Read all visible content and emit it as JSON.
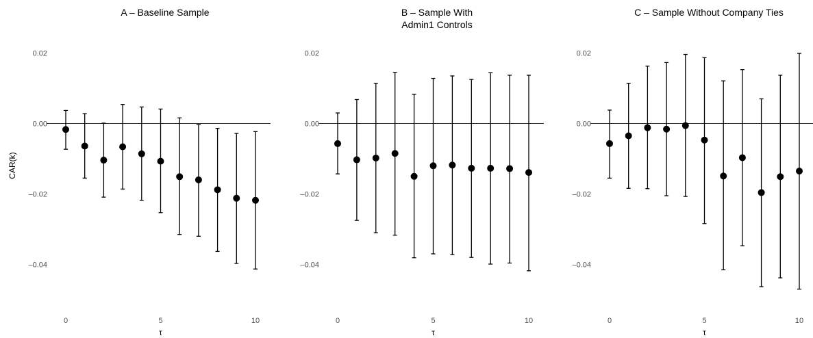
{
  "chart_data": [
    {
      "type": "scatter",
      "title": "A – Baseline Sample",
      "xlabel": "τ",
      "ylabel": "CAR(k)",
      "x": [
        0,
        1,
        2,
        3,
        4,
        5,
        6,
        7,
        8,
        9,
        10
      ],
      "y": [
        -0.0017,
        -0.0064,
        -0.0104,
        -0.0066,
        -0.0086,
        -0.0107,
        -0.0151,
        -0.016,
        -0.0188,
        -0.0212,
        -0.0218
      ],
      "ci_low": [
        -0.0073,
        -0.0155,
        -0.0209,
        -0.0186,
        -0.0218,
        -0.0253,
        -0.0315,
        -0.032,
        -0.0363,
        -0.0397,
        -0.0413
      ],
      "ci_high": [
        0.0037,
        0.0028,
        0.0001,
        0.0054,
        0.0047,
        0.0041,
        0.0016,
        -0.0003,
        -0.0014,
        -0.0028,
        -0.0023
      ],
      "xticks": [
        0,
        5,
        10
      ],
      "xtick_labels": [
        "0",
        "5",
        "10"
      ],
      "yticks": [
        0.02,
        0.0,
        -0.02,
        -0.04
      ],
      "ytick_labels": [
        "0.02",
        "0.00",
        "–0.02",
        "–0.04"
      ],
      "xlim": [
        -0.5,
        10.5
      ],
      "ylim": [
        -0.05,
        0.022
      ],
      "hline": 0
    },
    {
      "type": "scatter",
      "title": "B – Sample With\nAdmin1 Controls",
      "xlabel": "τ",
      "ylabel": "",
      "x": [
        0,
        1,
        2,
        3,
        4,
        5,
        6,
        7,
        8,
        9,
        10
      ],
      "y": [
        -0.0057,
        -0.0103,
        -0.0098,
        -0.0085,
        -0.015,
        -0.012,
        -0.0118,
        -0.0127,
        -0.0127,
        -0.0128,
        -0.0139
      ],
      "ci_low": [
        -0.0143,
        -0.0275,
        -0.031,
        -0.0317,
        -0.0381,
        -0.037,
        -0.0372,
        -0.038,
        -0.0399,
        -0.0396,
        -0.0418
      ],
      "ci_high": [
        0.003,
        0.0068,
        0.0114,
        0.0145,
        0.0083,
        0.0128,
        0.0135,
        0.0125,
        0.0144,
        0.0137,
        0.0137
      ],
      "xticks": [
        0,
        5,
        10
      ],
      "xtick_labels": [
        "0",
        "5",
        "10"
      ],
      "yticks": [
        0.02,
        0.0,
        -0.02,
        -0.04
      ],
      "ytick_labels": [
        "0.02",
        "0.00",
        "–0.02",
        "–0.04"
      ],
      "xlim": [
        -0.5,
        10.5
      ],
      "ylim": [
        -0.05,
        0.022
      ],
      "hline": 0
    },
    {
      "type": "scatter",
      "title": "C – Sample Without Company Ties",
      "xlabel": "τ",
      "ylabel": "",
      "x": [
        0,
        1,
        2,
        3,
        4,
        5,
        6,
        7,
        8,
        9,
        10
      ],
      "y": [
        -0.0057,
        -0.0035,
        -0.0012,
        -0.0016,
        -0.0006,
        -0.0047,
        -0.0149,
        -0.0097,
        -0.0196,
        -0.0151,
        -0.0135
      ],
      "ci_low": [
        -0.0155,
        -0.0184,
        -0.0185,
        -0.0205,
        -0.0207,
        -0.0284,
        -0.0415,
        -0.0347,
        -0.0463,
        -0.0438,
        -0.047
      ],
      "ci_high": [
        0.0038,
        0.0114,
        0.0163,
        0.0173,
        0.0196,
        0.0187,
        0.0121,
        0.0153,
        0.007,
        0.0137,
        0.0199
      ],
      "xticks": [
        0,
        5,
        10
      ],
      "xtick_labels": [
        "0",
        "5",
        "10"
      ],
      "yticks": [
        0.02,
        0.0,
        -0.02,
        -0.04
      ],
      "ytick_labels": [
        "0.02",
        "0.00",
        "–0.02",
        "–0.04"
      ],
      "xlim": [
        -0.5,
        10.5
      ],
      "ylim": [
        -0.05,
        0.022
      ],
      "hline": 0
    }
  ]
}
